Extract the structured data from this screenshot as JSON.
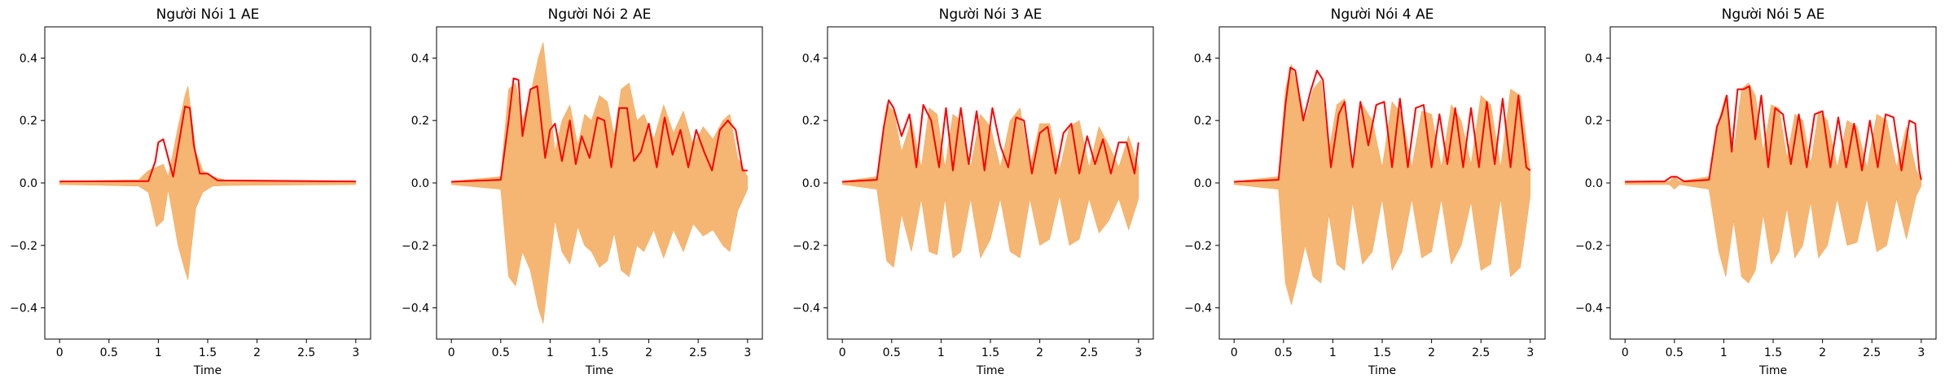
{
  "chart_data": [
    {
      "type": "area",
      "title": "Người Nói 1 AE",
      "xlabel": "Time",
      "ylabel": "",
      "xlim": [
        -0.15,
        3.15
      ],
      "ylim": [
        -0.5,
        0.5
      ],
      "xticks": [
        0,
        0.5,
        1,
        1.5,
        2,
        2.5,
        3
      ],
      "xtick_labels": [
        "0",
        "0.5",
        "1",
        "1.5",
        "2",
        "2.5",
        "3"
      ],
      "yticks": [
        -0.4,
        -0.2,
        0.0,
        0.2,
        0.4
      ],
      "ytick_labels": [
        "−0.4",
        "−0.2",
        "0.0",
        "0.2",
        "0.4"
      ],
      "series": [
        {
          "kind": "waveform",
          "color": "#f5a95a",
          "x": [
            0,
            0.8,
            0.9,
            0.98,
            1.05,
            1.1,
            1.2,
            1.27,
            1.3,
            1.33,
            1.38,
            1.45,
            1.55,
            1.7,
            3.0
          ],
          "upper": [
            0.005,
            0.01,
            0.04,
            0.05,
            0.06,
            0.02,
            0.18,
            0.28,
            0.31,
            0.23,
            0.1,
            0.04,
            0.02,
            0.008,
            0.005
          ],
          "lower": [
            -0.005,
            -0.01,
            -0.03,
            -0.14,
            -0.12,
            -0.02,
            -0.2,
            -0.28,
            -0.31,
            -0.22,
            -0.08,
            -0.03,
            -0.01,
            -0.008,
            -0.005
          ]
        },
        {
          "kind": "envelope",
          "color": "#ff0000",
          "x": [
            0,
            0.9,
            0.97,
            1.0,
            1.05,
            1.1,
            1.15,
            1.22,
            1.27,
            1.32,
            1.36,
            1.42,
            1.5,
            1.6,
            3.0
          ],
          "y": [
            0.005,
            0.006,
            0.07,
            0.13,
            0.14,
            0.08,
            0.02,
            0.15,
            0.245,
            0.24,
            0.12,
            0.03,
            0.03,
            0.008,
            0.005
          ]
        }
      ]
    },
    {
      "type": "area",
      "title": "Người Nói 2 AE",
      "xlabel": "Time",
      "ylabel": "",
      "xlim": [
        -0.15,
        3.15
      ],
      "ylim": [
        -0.5,
        0.5
      ],
      "xticks": [
        0,
        0.5,
        1,
        1.5,
        2,
        2.5,
        3
      ],
      "xtick_labels": [
        "0",
        "0.5",
        "1",
        "1.5",
        "2",
        "2.5",
        "3"
      ],
      "yticks": [
        -0.4,
        -0.2,
        0.0,
        0.2,
        0.4
      ],
      "ytick_labels": [
        "−0.4",
        "−0.2",
        "0.0",
        "0.2",
        "0.4"
      ],
      "series": [
        {
          "kind": "waveform",
          "color": "#f5a95a",
          "x": [
            0,
            0.5,
            0.58,
            0.65,
            0.72,
            0.8,
            0.88,
            0.93,
            0.98,
            1.05,
            1.12,
            1.2,
            1.28,
            1.35,
            1.42,
            1.5,
            1.58,
            1.65,
            1.72,
            1.8,
            1.88,
            1.95,
            2.05,
            2.15,
            2.25,
            2.35,
            2.45,
            2.55,
            2.65,
            2.75,
            2.82,
            2.9,
            3.0
          ],
          "upper": [
            0.005,
            0.02,
            0.3,
            0.32,
            0.2,
            0.28,
            0.4,
            0.45,
            0.3,
            0.1,
            0.2,
            0.25,
            0.12,
            0.22,
            0.2,
            0.28,
            0.26,
            0.15,
            0.3,
            0.32,
            0.2,
            0.22,
            0.14,
            0.25,
            0.16,
            0.23,
            0.12,
            0.18,
            0.14,
            0.2,
            0.22,
            0.08,
            0.02
          ],
          "lower": [
            -0.005,
            -0.02,
            -0.3,
            -0.33,
            -0.22,
            -0.28,
            -0.4,
            -0.45,
            -0.3,
            -0.12,
            -0.22,
            -0.26,
            -0.14,
            -0.2,
            -0.22,
            -0.27,
            -0.25,
            -0.16,
            -0.28,
            -0.3,
            -0.2,
            -0.22,
            -0.15,
            -0.24,
            -0.15,
            -0.22,
            -0.13,
            -0.17,
            -0.15,
            -0.2,
            -0.22,
            -0.09,
            -0.02
          ]
        },
        {
          "kind": "envelope",
          "color": "#ff0000",
          "x": [
            0,
            0.5,
            0.58,
            0.63,
            0.68,
            0.72,
            0.8,
            0.87,
            0.95,
            1.0,
            1.05,
            1.12,
            1.2,
            1.26,
            1.32,
            1.4,
            1.48,
            1.55,
            1.62,
            1.7,
            1.78,
            1.85,
            1.92,
            2.0,
            2.08,
            2.16,
            2.24,
            2.32,
            2.4,
            2.48,
            2.56,
            2.64,
            2.72,
            2.8,
            2.88,
            2.95,
            3.0
          ],
          "y": [
            0.004,
            0.01,
            0.2,
            0.335,
            0.33,
            0.15,
            0.3,
            0.31,
            0.08,
            0.17,
            0.19,
            0.07,
            0.2,
            0.06,
            0.15,
            0.08,
            0.21,
            0.2,
            0.05,
            0.24,
            0.24,
            0.07,
            0.1,
            0.19,
            0.05,
            0.21,
            0.09,
            0.17,
            0.05,
            0.17,
            0.1,
            0.04,
            0.17,
            0.2,
            0.17,
            0.04,
            0.04
          ]
        }
      ]
    },
    {
      "type": "area",
      "title": "Người Nói 3 AE",
      "xlabel": "Time",
      "ylabel": "",
      "xlim": [
        -0.15,
        3.15
      ],
      "ylim": [
        -0.5,
        0.5
      ],
      "xticks": [
        0,
        0.5,
        1,
        1.5,
        2,
        2.5,
        3
      ],
      "xtick_labels": [
        "0",
        "0.5",
        "1",
        "1.5",
        "2",
        "2.5",
        "3"
      ],
      "yticks": [
        -0.4,
        -0.2,
        0.0,
        0.2,
        0.4
      ],
      "ytick_labels": [
        "−0.4",
        "−0.2",
        "0.0",
        "0.2",
        "0.4"
      ],
      "series": [
        {
          "kind": "waveform",
          "color": "#f5a95a",
          "x": [
            0,
            0.35,
            0.45,
            0.52,
            0.6,
            0.7,
            0.8,
            0.88,
            0.96,
            1.04,
            1.12,
            1.2,
            1.3,
            1.4,
            1.5,
            1.6,
            1.7,
            1.8,
            1.9,
            2.0,
            2.1,
            2.2,
            2.3,
            2.4,
            2.5,
            2.6,
            2.7,
            2.8,
            2.9,
            3.0
          ],
          "upper": [
            0.005,
            0.02,
            0.25,
            0.23,
            0.1,
            0.2,
            0.05,
            0.24,
            0.22,
            0.05,
            0.22,
            0.2,
            0.05,
            0.22,
            0.18,
            0.05,
            0.2,
            0.24,
            0.05,
            0.19,
            0.19,
            0.04,
            0.18,
            0.2,
            0.05,
            0.18,
            0.12,
            0.05,
            0.15,
            0.05
          ],
          "lower": [
            -0.005,
            -0.02,
            -0.25,
            -0.27,
            -0.1,
            -0.22,
            -0.05,
            -0.22,
            -0.23,
            -0.05,
            -0.24,
            -0.22,
            -0.05,
            -0.24,
            -0.18,
            -0.05,
            -0.22,
            -0.24,
            -0.05,
            -0.2,
            -0.18,
            -0.04,
            -0.2,
            -0.18,
            -0.05,
            -0.16,
            -0.12,
            -0.05,
            -0.15,
            -0.05
          ]
        },
        {
          "kind": "envelope",
          "color": "#ff0000",
          "x": [
            0,
            0.35,
            0.42,
            0.47,
            0.52,
            0.6,
            0.68,
            0.75,
            0.82,
            0.9,
            0.98,
            1.05,
            1.12,
            1.2,
            1.28,
            1.36,
            1.44,
            1.52,
            1.6,
            1.68,
            1.76,
            1.84,
            1.92,
            2.0,
            2.08,
            2.16,
            2.24,
            2.32,
            2.4,
            2.48,
            2.56,
            2.64,
            2.72,
            2.8,
            2.88,
            2.96,
            3.0
          ],
          "y": [
            0.004,
            0.01,
            0.18,
            0.265,
            0.24,
            0.15,
            0.22,
            0.05,
            0.25,
            0.2,
            0.05,
            0.24,
            0.04,
            0.24,
            0.06,
            0.23,
            0.04,
            0.24,
            0.12,
            0.05,
            0.21,
            0.2,
            0.03,
            0.16,
            0.18,
            0.03,
            0.16,
            0.19,
            0.03,
            0.15,
            0.06,
            0.14,
            0.03,
            0.13,
            0.13,
            0.03,
            0.13
          ]
        }
      ]
    },
    {
      "type": "area",
      "title": "Người Nói 4 AE",
      "xlabel": "Time",
      "ylabel": "",
      "xlim": [
        -0.15,
        3.15
      ],
      "ylim": [
        -0.5,
        0.5
      ],
      "xticks": [
        0,
        0.5,
        1,
        1.5,
        2,
        2.5,
        3
      ],
      "xtick_labels": [
        "0",
        "0.5",
        "1",
        "1.5",
        "2",
        "2.5",
        "3"
      ],
      "yticks": [
        -0.4,
        -0.2,
        0.0,
        0.2,
        0.4
      ],
      "ytick_labels": [
        "−0.4",
        "−0.2",
        "0.0",
        "0.2",
        "0.4"
      ],
      "series": [
        {
          "kind": "waveform",
          "color": "#f5a95a",
          "x": [
            0,
            0.45,
            0.52,
            0.58,
            0.65,
            0.72,
            0.8,
            0.88,
            0.96,
            1.04,
            1.12,
            1.2,
            1.3,
            1.4,
            1.5,
            1.6,
            1.7,
            1.8,
            1.9,
            2.0,
            2.1,
            2.2,
            2.3,
            2.4,
            2.5,
            2.6,
            2.7,
            2.8,
            2.9,
            3.0
          ],
          "upper": [
            0.005,
            0.02,
            0.3,
            0.38,
            0.3,
            0.2,
            0.3,
            0.33,
            0.1,
            0.25,
            0.27,
            0.06,
            0.25,
            0.2,
            0.05,
            0.26,
            0.22,
            0.05,
            0.23,
            0.22,
            0.05,
            0.25,
            0.2,
            0.06,
            0.28,
            0.25,
            0.05,
            0.3,
            0.28,
            0.04
          ],
          "lower": [
            -0.005,
            -0.02,
            -0.32,
            -0.39,
            -0.3,
            -0.2,
            -0.3,
            -0.32,
            -0.1,
            -0.26,
            -0.28,
            -0.06,
            -0.26,
            -0.22,
            -0.05,
            -0.28,
            -0.22,
            -0.05,
            -0.24,
            -0.22,
            -0.05,
            -0.26,
            -0.2,
            -0.06,
            -0.28,
            -0.26,
            -0.05,
            -0.3,
            -0.27,
            -0.04
          ]
        },
        {
          "kind": "envelope",
          "color": "#ff0000",
          "x": [
            0,
            0.45,
            0.52,
            0.57,
            0.62,
            0.7,
            0.78,
            0.84,
            0.9,
            0.98,
            1.06,
            1.12,
            1.2,
            1.28,
            1.36,
            1.44,
            1.52,
            1.6,
            1.68,
            1.76,
            1.84,
            1.92,
            2.0,
            2.08,
            2.16,
            2.24,
            2.32,
            2.4,
            2.48,
            2.56,
            2.64,
            2.72,
            2.8,
            2.88,
            2.96,
            3.0
          ],
          "y": [
            0.004,
            0.01,
            0.25,
            0.37,
            0.36,
            0.2,
            0.3,
            0.36,
            0.33,
            0.05,
            0.22,
            0.26,
            0.05,
            0.26,
            0.12,
            0.25,
            0.26,
            0.05,
            0.27,
            0.05,
            0.24,
            0.25,
            0.05,
            0.22,
            0.06,
            0.24,
            0.05,
            0.24,
            0.05,
            0.26,
            0.06,
            0.27,
            0.05,
            0.28,
            0.05,
            0.04
          ]
        }
      ]
    },
    {
      "type": "area",
      "title": "Người Nói 5 AE",
      "xlabel": "Time",
      "ylabel": "",
      "xlim": [
        -0.15,
        3.15
      ],
      "ylim": [
        -0.5,
        0.5
      ],
      "xticks": [
        0,
        0.5,
        1,
        1.5,
        2,
        2.5,
        3
      ],
      "xtick_labels": [
        "0",
        "0.5",
        "1",
        "1.5",
        "2",
        "2.5",
        "3"
      ],
      "yticks": [
        -0.4,
        -0.2,
        0.0,
        0.2,
        0.4
      ],
      "ytick_labels": [
        "−0.4",
        "−0.2",
        "0.0",
        "0.2",
        "0.4"
      ],
      "series": [
        {
          "kind": "waveform",
          "color": "#f5a95a",
          "x": [
            0,
            0.45,
            0.5,
            0.55,
            0.85,
            0.95,
            1.02,
            1.1,
            1.18,
            1.25,
            1.32,
            1.4,
            1.48,
            1.56,
            1.64,
            1.72,
            1.8,
            1.88,
            1.96,
            2.05,
            2.15,
            2.25,
            2.35,
            2.45,
            2.55,
            2.65,
            2.75,
            2.85,
            2.95,
            3.0
          ],
          "upper": [
            0.005,
            0.005,
            0.02,
            0.005,
            0.02,
            0.2,
            0.28,
            0.1,
            0.3,
            0.32,
            0.28,
            0.1,
            0.25,
            0.24,
            0.08,
            0.22,
            0.2,
            0.06,
            0.23,
            0.2,
            0.05,
            0.2,
            0.18,
            0.05,
            0.22,
            0.2,
            0.05,
            0.18,
            0.04,
            0.01
          ],
          "lower": [
            -0.005,
            -0.005,
            -0.02,
            -0.005,
            -0.02,
            -0.22,
            -0.3,
            -0.12,
            -0.3,
            -0.32,
            -0.28,
            -0.1,
            -0.26,
            -0.22,
            -0.08,
            -0.24,
            -0.2,
            -0.06,
            -0.24,
            -0.2,
            -0.05,
            -0.2,
            -0.19,
            -0.05,
            -0.22,
            -0.2,
            -0.05,
            -0.18,
            -0.04,
            -0.01
          ]
        },
        {
          "kind": "envelope",
          "color": "#ff0000",
          "x": [
            0,
            0.4,
            0.47,
            0.52,
            0.6,
            0.85,
            0.93,
            0.98,
            1.03,
            1.08,
            1.14,
            1.2,
            1.26,
            1.32,
            1.38,
            1.45,
            1.52,
            1.6,
            1.68,
            1.76,
            1.84,
            1.92,
            2.0,
            2.08,
            2.16,
            2.24,
            2.32,
            2.4,
            2.48,
            2.56,
            2.64,
            2.72,
            2.8,
            2.88,
            2.94,
            2.98,
            3.0
          ],
          "y": [
            0.004,
            0.005,
            0.02,
            0.02,
            0.005,
            0.01,
            0.18,
            0.22,
            0.28,
            0.1,
            0.3,
            0.3,
            0.31,
            0.14,
            0.28,
            0.05,
            0.24,
            0.22,
            0.06,
            0.22,
            0.05,
            0.22,
            0.23,
            0.05,
            0.21,
            0.05,
            0.19,
            0.04,
            0.2,
            0.05,
            0.22,
            0.21,
            0.04,
            0.2,
            0.19,
            0.04,
            0.01
          ]
        }
      ]
    }
  ]
}
